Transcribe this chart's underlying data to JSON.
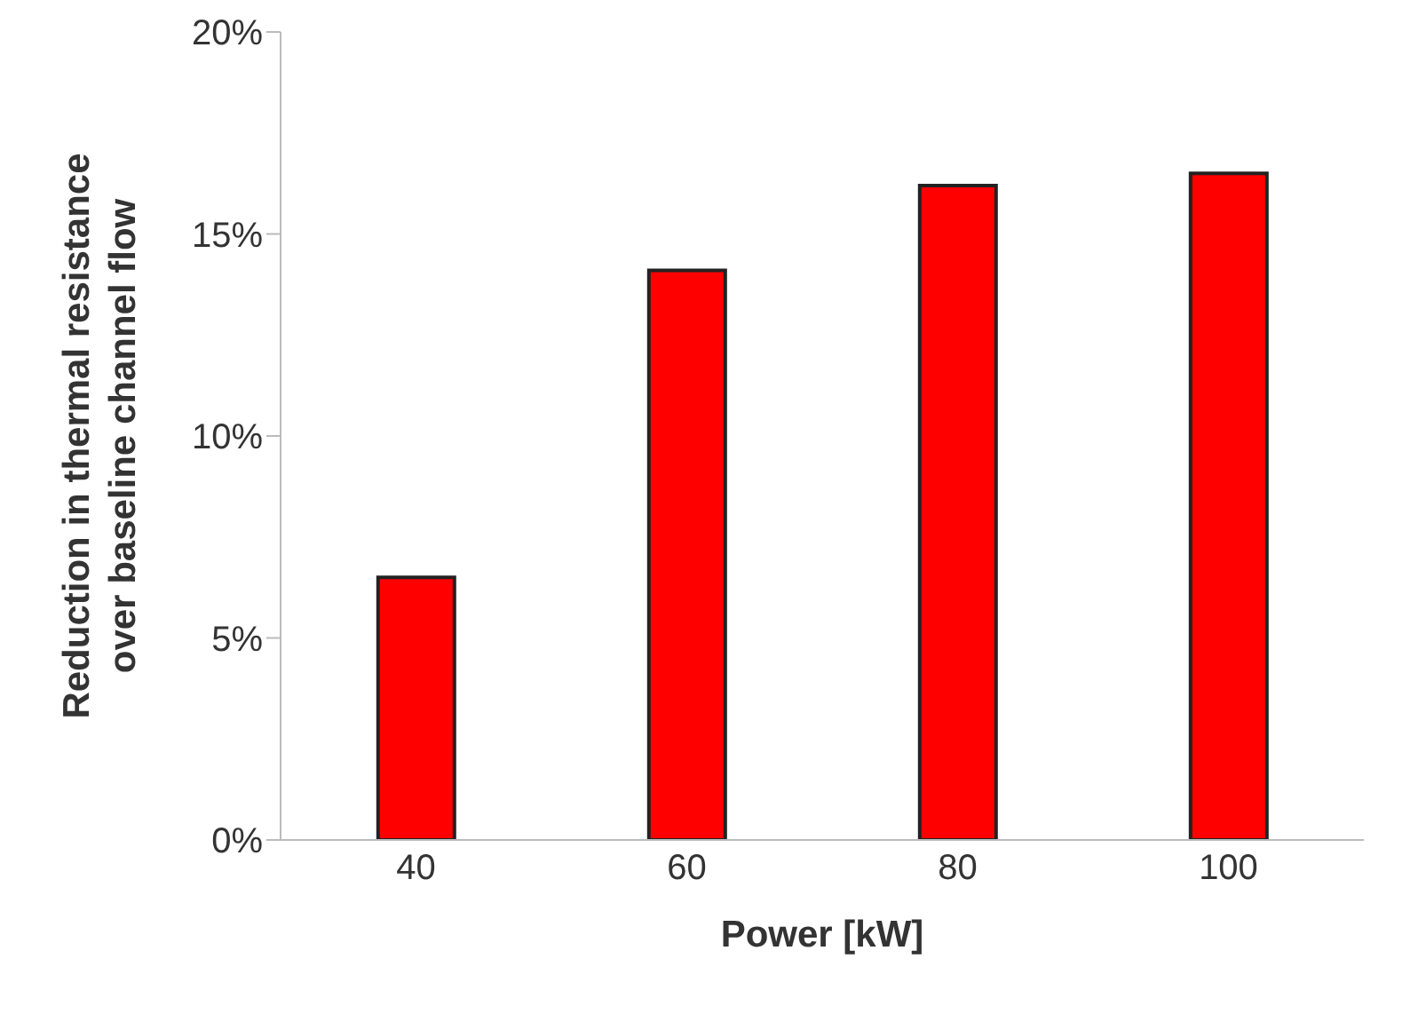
{
  "chart_data": {
    "type": "bar",
    "categories": [
      "40",
      "60",
      "80",
      "100"
    ],
    "values": [
      6.5,
      14.1,
      16.2,
      16.5
    ],
    "color": "#ff0000",
    "xlabel": "Power [kW]",
    "ylabel": "Reduction in thermal resistance\nover baseline channel flow",
    "ylim": [
      0,
      20
    ],
    "yticks": [
      {
        "value": 0,
        "label": "0%"
      },
      {
        "value": 5,
        "label": "5%"
      },
      {
        "value": 10,
        "label": "10%"
      },
      {
        "value": 15,
        "label": "15%"
      },
      {
        "value": 20,
        "label": "20%"
      }
    ],
    "grid": false,
    "legend": false
  }
}
